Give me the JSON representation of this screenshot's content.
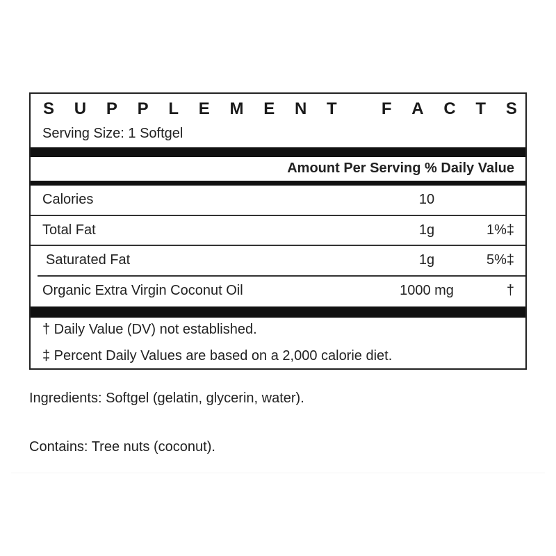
{
  "title": "SUPPLEMENT FACTS",
  "serving_size": "Serving Size: 1 Softgel",
  "header": "Amount Per Serving % Daily Value",
  "rows": [
    {
      "name": "Calories",
      "amount": "10",
      "dv": ""
    },
    {
      "name": "Total Fat",
      "amount": "1g",
      "dv": "1%‡"
    },
    {
      "name": "Saturated Fat",
      "amount": "1g",
      "dv": "5%‡"
    },
    {
      "name": "Organic Extra Virgin Coconut Oil",
      "amount": "1000 mg",
      "dv": "†"
    }
  ],
  "footnotes": [
    "† Daily Value (DV) not established.",
    "‡ Percent Daily Values are based on a 2,000 calorie diet."
  ],
  "ingredients": "Ingredients: Softgel (gelatin, glycerin, water).",
  "contains": "Contains: Tree nuts (coconut)."
}
